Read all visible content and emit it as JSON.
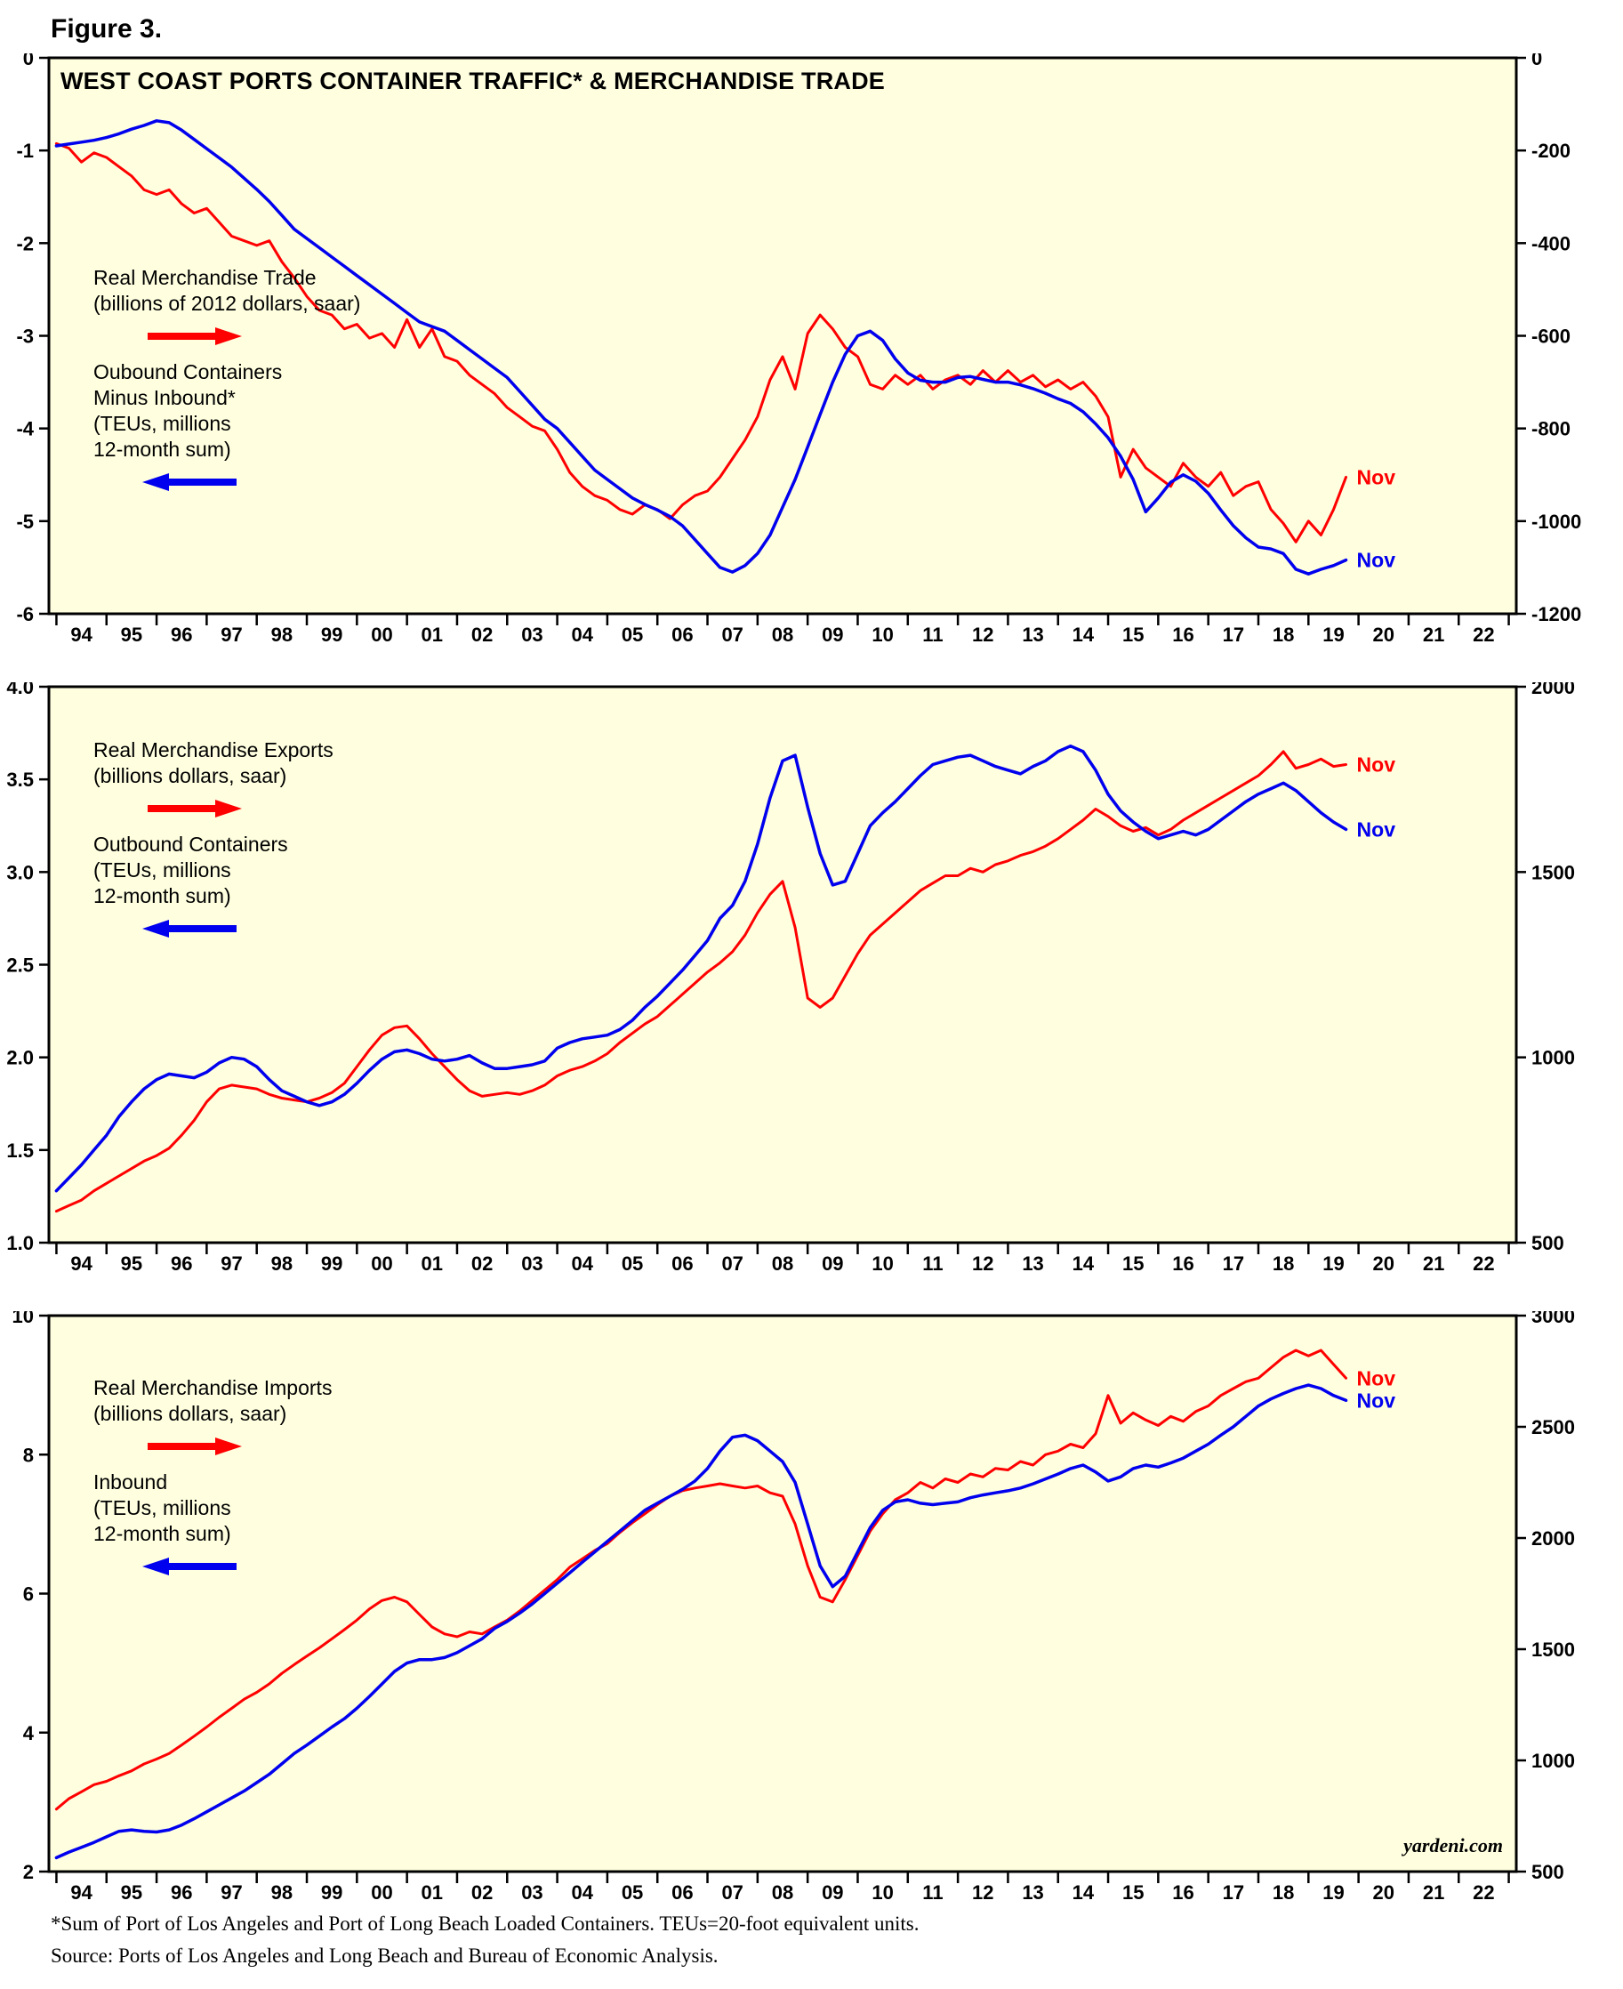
{
  "figure_label": "Figure 3.",
  "branding": "yardeni.com",
  "footnotes": [
    "*Sum of Port of Los Angeles and Port of Long Beach Loaded Containers. TEUs=20-foot equivalent units.",
    "Source: Ports of Los Angeles and Long Beach and Bureau of Economic Analysis."
  ],
  "colors": {
    "red": "#FF0000",
    "blue": "#0000EE",
    "plot_background": "#FFFFE0",
    "border": "#000000"
  },
  "chart_data": [
    {
      "type": "line",
      "title": "WEST COAST PORTS CONTAINER TRAFFIC* & MERCHANDISE TRADE",
      "x_axis": {
        "domain": [
          1993.85,
          2023.15
        ],
        "first_tick": 1994,
        "last_tick": 2023,
        "labels": [
          "94",
          "95",
          "96",
          "97",
          "98",
          "99",
          "00",
          "01",
          "02",
          "03",
          "04",
          "05",
          "06",
          "07",
          "08",
          "09",
          "10",
          "11",
          "12",
          "13",
          "14",
          "15",
          "16",
          "17",
          "18",
          "19",
          "20",
          "21",
          "22"
        ]
      },
      "left_axis": {
        "min": -6,
        "max": 0,
        "decimals": 0,
        "ticks": [
          0,
          -1,
          -2,
          -3,
          -4,
          -5,
          -6
        ]
      },
      "right_axis": {
        "min": -1200,
        "max": 0,
        "decimals": 0,
        "ticks": [
          0,
          -200,
          -400,
          -600,
          -800,
          -1000,
          -1200
        ]
      },
      "legend": [
        {
          "text": "Real Merchandise Trade\n(billions of 2012 dollars, saar)",
          "arrow": "right",
          "color": "red"
        },
        {
          "text": "Oubound Containers\nMinus Inbound*\n(TEUs, millions\n12-month sum)",
          "arrow": "left",
          "color": "blue"
        }
      ],
      "series": [
        {
          "name": "Real Merchandise Trade",
          "color": "red",
          "axis": "right",
          "end_label": "Nov",
          "x_start": 1994,
          "x_step": 0.25,
          "values": [
            -185,
            -195,
            -225,
            -205,
            -215,
            -235,
            -255,
            -285,
            -295,
            -285,
            -315,
            -335,
            -325,
            -355,
            -385,
            -395,
            -405,
            -395,
            -440,
            -475,
            -515,
            -545,
            -555,
            -585,
            -575,
            -605,
            -595,
            -625,
            -565,
            -625,
            -585,
            -645,
            -655,
            -685,
            -705,
            -725,
            -755,
            -775,
            -795,
            -805,
            -845,
            -895,
            -925,
            -945,
            -955,
            -975,
            -985,
            -965,
            -975,
            -995,
            -965,
            -945,
            -935,
            -905,
            -865,
            -825,
            -775,
            -695,
            -645,
            -715,
            -595,
            -555,
            -585,
            -625,
            -645,
            -705,
            -715,
            -685,
            -705,
            -685,
            -715,
            -695,
            -685,
            -705,
            -675,
            -700,
            -675,
            -700,
            -685,
            -710,
            -695,
            -715,
            -700,
            -730,
            -775,
            -905,
            -845,
            -885,
            -905,
            -925,
            -875,
            -905,
            -925,
            -895,
            -945,
            -925,
            -915,
            -975,
            -1005,
            -1045,
            -1000,
            -1030,
            -975,
            -905
          ]
        },
        {
          "name": "Outbound Containers Minus Inbound",
          "color": "blue",
          "axis": "left",
          "end_label": "Nov",
          "x_start": 1994,
          "x_step": 0.25,
          "values": [
            -0.95,
            -0.93,
            -0.91,
            -0.89,
            -0.86,
            -0.82,
            -0.77,
            -0.73,
            -0.68,
            -0.7,
            -0.78,
            -0.88,
            -0.98,
            -1.08,
            -1.18,
            -1.3,
            -1.42,
            -1.55,
            -1.7,
            -1.85,
            -1.95,
            -2.05,
            -2.15,
            -2.25,
            -2.35,
            -2.45,
            -2.55,
            -2.65,
            -2.75,
            -2.85,
            -2.9,
            -2.95,
            -3.05,
            -3.15,
            -3.25,
            -3.35,
            -3.45,
            -3.6,
            -3.75,
            -3.9,
            -4.0,
            -4.15,
            -4.3,
            -4.45,
            -4.55,
            -4.65,
            -4.75,
            -4.82,
            -4.88,
            -4.95,
            -5.05,
            -5.2,
            -5.35,
            -5.5,
            -5.55,
            -5.48,
            -5.35,
            -5.15,
            -4.85,
            -4.55,
            -4.2,
            -3.85,
            -3.5,
            -3.2,
            -3.0,
            -2.95,
            -3.05,
            -3.25,
            -3.4,
            -3.48,
            -3.5,
            -3.5,
            -3.45,
            -3.44,
            -3.47,
            -3.5,
            -3.5,
            -3.53,
            -3.57,
            -3.62,
            -3.68,
            -3.73,
            -3.82,
            -3.95,
            -4.1,
            -4.3,
            -4.55,
            -4.9,
            -4.75,
            -4.58,
            -4.5,
            -4.57,
            -4.7,
            -4.88,
            -5.05,
            -5.18,
            -5.28,
            -5.3,
            -5.35,
            -5.52,
            -5.57,
            -5.52,
            -5.48,
            -5.42
          ]
        }
      ]
    },
    {
      "type": "line",
      "title": "",
      "x_axis": {
        "domain": [
          1993.85,
          2023.15
        ],
        "first_tick": 1994,
        "last_tick": 2023,
        "labels": [
          "94",
          "95",
          "96",
          "97",
          "98",
          "99",
          "00",
          "01",
          "02",
          "03",
          "04",
          "05",
          "06",
          "07",
          "08",
          "09",
          "10",
          "11",
          "12",
          "13",
          "14",
          "15",
          "16",
          "17",
          "18",
          "19",
          "20",
          "21",
          "22"
        ]
      },
      "left_axis": {
        "min": 1.0,
        "max": 4.0,
        "decimals": 1,
        "ticks": [
          4.0,
          3.5,
          3.0,
          2.5,
          2.0,
          1.5,
          1.0
        ]
      },
      "right_axis": {
        "min": 500,
        "max": 2000,
        "decimals": 0,
        "ticks": [
          2000,
          1500,
          1000,
          500
        ]
      },
      "legend": [
        {
          "text": "Real Merchandise Exports\n(billions dollars, saar)",
          "arrow": "right",
          "color": "red"
        },
        {
          "text": "Outbound Containers\n(TEUs, millions\n12-month sum)",
          "arrow": "left",
          "color": "blue"
        }
      ],
      "series": [
        {
          "name": "Real Merchandise Exports",
          "color": "red",
          "axis": "right",
          "end_label": "Nov",
          "x_start": 1994,
          "x_step": 0.25,
          "values": [
            585,
            600,
            615,
            640,
            660,
            680,
            700,
            720,
            735,
            755,
            790,
            830,
            880,
            915,
            925,
            920,
            915,
            900,
            890,
            885,
            880,
            890,
            905,
            930,
            975,
            1020,
            1060,
            1080,
            1085,
            1050,
            1010,
            975,
            940,
            910,
            895,
            900,
            905,
            900,
            910,
            925,
            950,
            965,
            975,
            990,
            1010,
            1040,
            1065,
            1090,
            1110,
            1140,
            1170,
            1200,
            1230,
            1255,
            1285,
            1330,
            1390,
            1440,
            1475,
            1350,
            1160,
            1135,
            1160,
            1220,
            1280,
            1330,
            1360,
            1390,
            1420,
            1450,
            1470,
            1490,
            1490,
            1510,
            1500,
            1520,
            1530,
            1545,
            1555,
            1570,
            1590,
            1615,
            1640,
            1670,
            1650,
            1625,
            1610,
            1620,
            1600,
            1615,
            1640,
            1660,
            1680,
            1700,
            1720,
            1740,
            1760,
            1790,
            1825,
            1780,
            1790,
            1805,
            1785,
            1790
          ]
        },
        {
          "name": "Outbound Containers",
          "color": "blue",
          "axis": "left",
          "end_label": "Nov",
          "x_start": 1994,
          "x_step": 0.25,
          "values": [
            1.28,
            1.35,
            1.42,
            1.5,
            1.58,
            1.68,
            1.76,
            1.83,
            1.88,
            1.91,
            1.9,
            1.89,
            1.92,
            1.97,
            2.0,
            1.99,
            1.95,
            1.88,
            1.82,
            1.79,
            1.76,
            1.74,
            1.76,
            1.8,
            1.86,
            1.93,
            1.99,
            2.03,
            2.04,
            2.02,
            1.99,
            1.98,
            1.99,
            2.01,
            1.97,
            1.94,
            1.94,
            1.95,
            1.96,
            1.98,
            2.05,
            2.08,
            2.1,
            2.11,
            2.12,
            2.15,
            2.2,
            2.27,
            2.33,
            2.4,
            2.47,
            2.55,
            2.63,
            2.75,
            2.82,
            2.95,
            3.15,
            3.4,
            3.6,
            3.63,
            3.35,
            3.1,
            2.93,
            2.95,
            3.1,
            3.25,
            3.32,
            3.38,
            3.45,
            3.52,
            3.58,
            3.6,
            3.62,
            3.63,
            3.6,
            3.57,
            3.55,
            3.53,
            3.57,
            3.6,
            3.65,
            3.68,
            3.65,
            3.55,
            3.42,
            3.33,
            3.27,
            3.22,
            3.18,
            3.2,
            3.22,
            3.2,
            3.23,
            3.28,
            3.33,
            3.38,
            3.42,
            3.45,
            3.48,
            3.44,
            3.38,
            3.32,
            3.27,
            3.23
          ]
        }
      ]
    },
    {
      "type": "line",
      "title": "",
      "x_axis": {
        "domain": [
          1993.85,
          2023.15
        ],
        "first_tick": 1994,
        "last_tick": 2023,
        "labels": [
          "94",
          "95",
          "96",
          "97",
          "98",
          "99",
          "00",
          "01",
          "02",
          "03",
          "04",
          "05",
          "06",
          "07",
          "08",
          "09",
          "10",
          "11",
          "12",
          "13",
          "14",
          "15",
          "16",
          "17",
          "18",
          "19",
          "20",
          "21",
          "22"
        ]
      },
      "left_axis": {
        "min": 2,
        "max": 10,
        "decimals": 0,
        "ticks": [
          10,
          8,
          6,
          4,
          2
        ]
      },
      "right_axis": {
        "min": 500,
        "max": 3000,
        "decimals": 0,
        "ticks": [
          3000,
          2500,
          2000,
          1500,
          1000,
          500
        ]
      },
      "legend": [
        {
          "text": "Real Merchandise Imports\n(billions dollars, saar)",
          "arrow": "right",
          "color": "red"
        },
        {
          "text": "Inbound\n(TEUs, millions\n12-month sum)",
          "arrow": "left",
          "color": "blue"
        }
      ],
      "series": [
        {
          "name": "Real Merchandise Imports",
          "color": "red",
          "axis": "right",
          "end_label": "Nov",
          "x_start": 1994,
          "x_step": 0.25,
          "values": [
            781,
            828,
            859,
            891,
            906,
            931,
            953,
            984,
            1006,
            1031,
            1069,
            1109,
            1150,
            1194,
            1234,
            1275,
            1306,
            1344,
            1391,
            1431,
            1469,
            1506,
            1547,
            1588,
            1631,
            1681,
            1719,
            1734,
            1713,
            1656,
            1600,
            1569,
            1556,
            1578,
            1569,
            1600,
            1631,
            1672,
            1719,
            1766,
            1813,
            1869,
            1906,
            1944,
            1975,
            2025,
            2069,
            2109,
            2150,
            2188,
            2213,
            2225,
            2234,
            2244,
            2234,
            2225,
            2234,
            2203,
            2188,
            2063,
            1875,
            1734,
            1713,
            1813,
            1922,
            2031,
            2109,
            2172,
            2203,
            2250,
            2225,
            2266,
            2250,
            2288,
            2275,
            2313,
            2306,
            2344,
            2328,
            2375,
            2391,
            2422,
            2406,
            2469,
            2641,
            2516,
            2563,
            2531,
            2506,
            2547,
            2525,
            2569,
            2594,
            2641,
            2672,
            2703,
            2719,
            2766,
            2813,
            2844,
            2819,
            2844,
            2781,
            2719
          ]
        },
        {
          "name": "Inbound",
          "color": "blue",
          "axis": "left",
          "end_label": "Nov",
          "x_start": 1994,
          "x_step": 0.25,
          "values": [
            2.2,
            2.28,
            2.35,
            2.42,
            2.5,
            2.58,
            2.6,
            2.58,
            2.57,
            2.6,
            2.67,
            2.76,
            2.86,
            2.96,
            3.06,
            3.16,
            3.28,
            3.4,
            3.55,
            3.7,
            3.82,
            3.95,
            4.08,
            4.2,
            4.35,
            4.52,
            4.7,
            4.88,
            5.0,
            5.05,
            5.05,
            5.08,
            5.15,
            5.25,
            5.35,
            5.5,
            5.6,
            5.72,
            5.85,
            6.0,
            6.15,
            6.3,
            6.45,
            6.6,
            6.75,
            6.9,
            7.05,
            7.2,
            7.3,
            7.4,
            7.5,
            7.62,
            7.8,
            8.05,
            8.25,
            8.28,
            8.2,
            8.05,
            7.9,
            7.6,
            7.0,
            6.4,
            6.1,
            6.25,
            6.6,
            6.95,
            7.2,
            7.32,
            7.35,
            7.3,
            7.28,
            7.3,
            7.32,
            7.38,
            7.42,
            7.45,
            7.48,
            7.52,
            7.58,
            7.65,
            7.72,
            7.8,
            7.85,
            7.75,
            7.62,
            7.68,
            7.8,
            7.85,
            7.82,
            7.88,
            7.95,
            8.05,
            8.15,
            8.28,
            8.4,
            8.55,
            8.7,
            8.8,
            8.88,
            8.95,
            9.0,
            8.95,
            8.85,
            8.78
          ]
        }
      ]
    }
  ]
}
